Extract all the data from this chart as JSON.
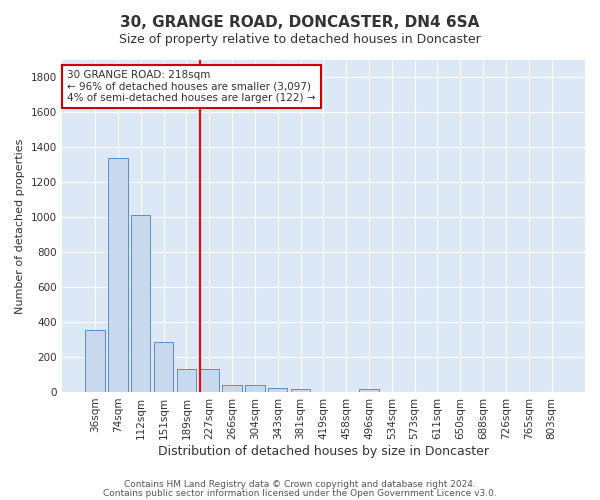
{
  "title": "30, GRANGE ROAD, DONCASTER, DN4 6SA",
  "subtitle": "Size of property relative to detached houses in Doncaster",
  "xlabel": "Distribution of detached houses by size in Doncaster",
  "ylabel": "Number of detached properties",
  "bar_labels": [
    "36sqm",
    "74sqm",
    "112sqm",
    "151sqm",
    "189sqm",
    "227sqm",
    "266sqm",
    "304sqm",
    "343sqm",
    "381sqm",
    "419sqm",
    "458sqm",
    "496sqm",
    "534sqm",
    "573sqm",
    "611sqm",
    "650sqm",
    "688sqm",
    "726sqm",
    "765sqm",
    "803sqm"
  ],
  "bar_values": [
    355,
    1340,
    1010,
    285,
    130,
    130,
    42,
    42,
    22,
    15,
    0,
    0,
    15,
    0,
    0,
    0,
    0,
    0,
    0,
    0,
    0
  ],
  "bar_color": "#c8d9ee",
  "bar_edgecolor": "#5b8ec4",
  "bg_color": "#dce8f5",
  "grid_color": "#ffffff",
  "fig_bg_color": "#ffffff",
  "red_line_index": 4.6,
  "annotation_text_line1": "30 GRANGE ROAD: 218sqm",
  "annotation_text_line2": "← 96% of detached houses are smaller (3,097)",
  "annotation_text_line3": "4% of semi-detached houses are larger (122) →",
  "annotation_box_color": "#ffffff",
  "annotation_box_edgecolor": "#cc0000",
  "ylim": [
    0,
    1900
  ],
  "yticks": [
    0,
    200,
    400,
    600,
    800,
    1000,
    1200,
    1400,
    1600,
    1800
  ],
  "footnote1": "Contains HM Land Registry data © Crown copyright and database right 2024.",
  "footnote2": "Contains public sector information licensed under the Open Government Licence v3.0.",
  "title_fontsize": 11,
  "subtitle_fontsize": 9,
  "xlabel_fontsize": 9,
  "ylabel_fontsize": 8,
  "tick_fontsize": 7.5,
  "footnote_fontsize": 6.5,
  "annotation_fontsize": 7.5
}
